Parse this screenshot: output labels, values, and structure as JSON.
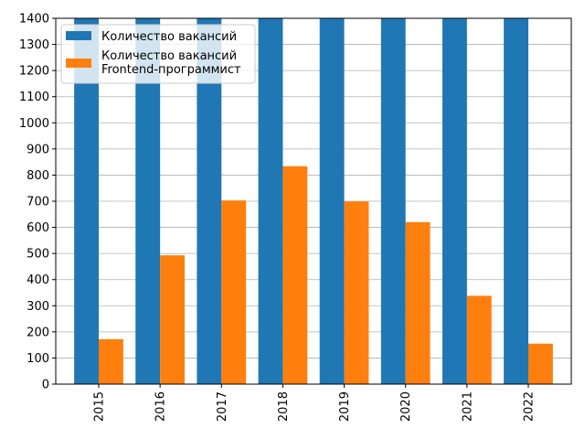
{
  "chart_data": {
    "type": "bar",
    "title": "",
    "xlabel": "",
    "ylabel": "",
    "categories": [
      "2015",
      "2016",
      "2017",
      "2018",
      "2019",
      "2020",
      "2021",
      "2022"
    ],
    "ylim": [
      0,
      1400
    ],
    "yticks": [
      0,
      100,
      200,
      300,
      400,
      500,
      600,
      700,
      800,
      900,
      1000,
      1100,
      1200,
      1300,
      1400
    ],
    "grid": "horizontal",
    "legend_position": "upper-left",
    "series": [
      {
        "name": "Количество вакансий",
        "color": "#1f77b4",
        "values": [
          1400,
          1400,
          1400,
          1400,
          1400,
          1400,
          1400,
          1400
        ]
      },
      {
        "name": "Количество вакансий\nFrontend-программист",
        "name_lines": [
          "Количество вакансий",
          "Frontend-программист"
        ],
        "color": "#ff7f0e",
        "values": [
          172,
          493,
          703,
          834,
          699,
          620,
          338,
          155
        ]
      }
    ]
  }
}
